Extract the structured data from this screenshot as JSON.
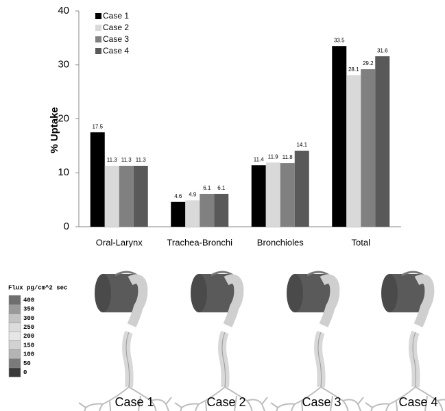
{
  "chart_data": {
    "type": "bar",
    "y_label": "% Uptake",
    "categories": [
      "Oral-Larynx",
      "Trachea-Bronchi",
      "Bronchioles",
      "Total"
    ],
    "series": [
      {
        "name": "Case 1",
        "color": "#000000",
        "values": [
          17.5,
          4.6,
          11.4,
          33.5
        ]
      },
      {
        "name": "Case 2",
        "color": "#d9d9d9",
        "values": [
          11.3,
          4.9,
          11.9,
          28.1
        ]
      },
      {
        "name": "Case 3",
        "color": "#808080",
        "values": [
          11.3,
          6.1,
          11.8,
          29.2
        ]
      },
      {
        "name": "Case 4",
        "color": "#595959",
        "values": [
          11.3,
          6.1,
          14.1,
          31.6
        ]
      }
    ],
    "ylim": [
      0,
      40
    ],
    "yticks": [
      0,
      10,
      20,
      30,
      40
    ],
    "grid": false,
    "legend": "upper left"
  },
  "flux_legend": {
    "title": "Flux pg/cm^2 sec",
    "labels": [
      "400",
      "350",
      "300",
      "250",
      "200",
      "150",
      "100",
      "50",
      "0"
    ],
    "colors": [
      "#6e6e6e",
      "#9a9a9a",
      "#c4c4c4",
      "#dcdcdc",
      "#e6e6e6",
      "#d2d2d2",
      "#b4b4b4",
      "#7a7a7a",
      "#3a3a3a"
    ]
  },
  "captions": [
    "Case 1",
    "Case 2",
    "Case 3",
    "Case 4"
  ]
}
